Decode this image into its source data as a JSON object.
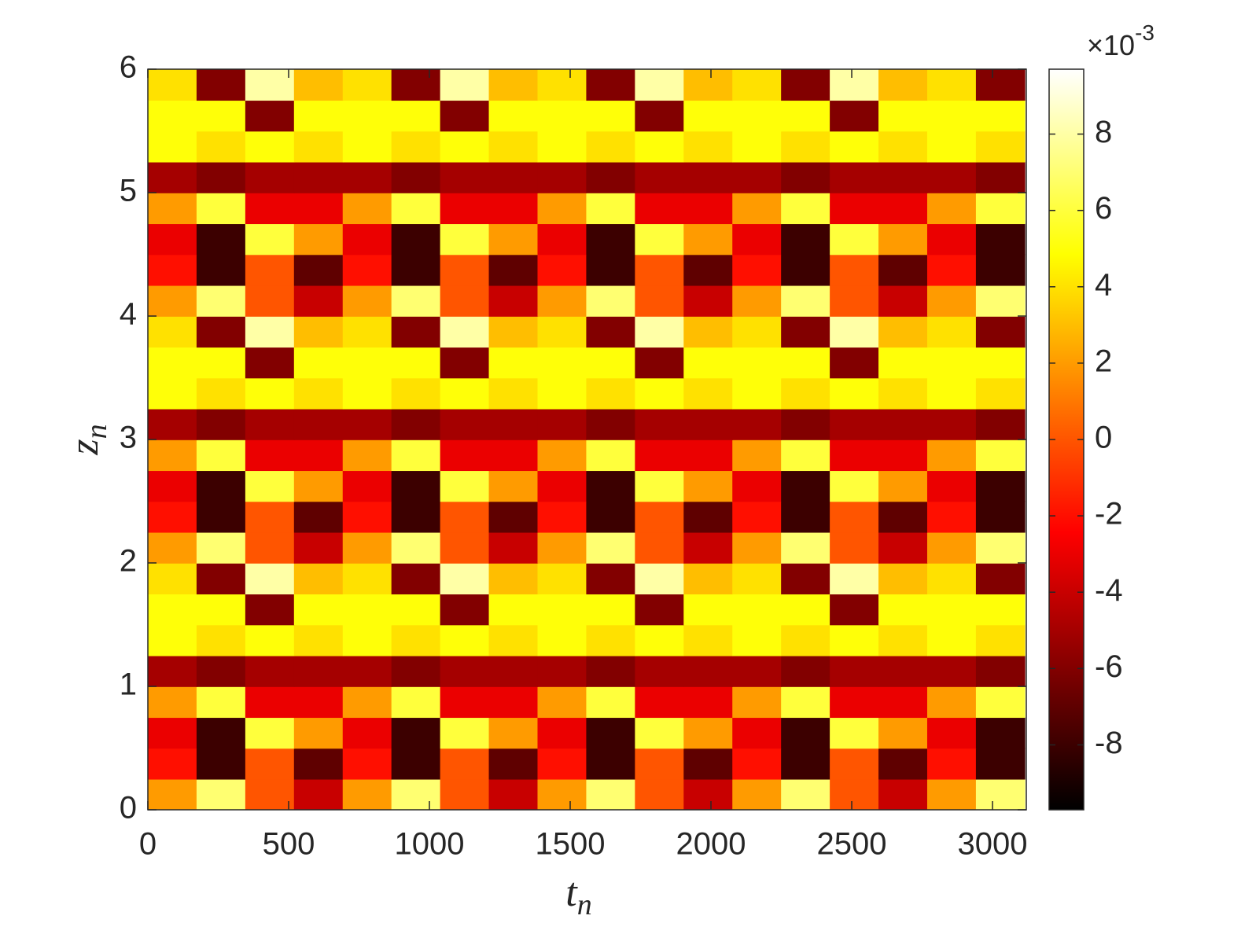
{
  "chart_data": {
    "type": "heatmap",
    "xlabel": {
      "base": "t",
      "sub": "n"
    },
    "ylabel": {
      "base": "z",
      "sub": "n"
    },
    "x": [
      86.5,
      259.5,
      432.5,
      605.5,
      778.5,
      951.5,
      1124.5,
      1297.5,
      1470.5,
      1643.5,
      1816.5,
      1989.5,
      2162.5,
      2335.5,
      2508.5,
      2681.5,
      2854.5,
      3027.5
    ],
    "y": [
      0.125,
      0.375,
      0.625,
      0.875,
      1.125,
      1.375,
      1.625,
      1.875,
      2.125,
      2.375,
      2.625,
      2.875,
      3.125,
      3.375,
      3.625,
      3.875,
      4.125,
      4.375,
      4.625,
      4.875,
      5.125,
      5.375,
      5.625,
      5.875
    ],
    "z": [
      [
        2,
        7,
        0,
        -4,
        2,
        7,
        0,
        -4,
        2,
        7,
        0,
        -4,
        2,
        7,
        0,
        -4,
        2,
        7
      ],
      [
        -2,
        -8,
        0,
        -7,
        -2,
        -8,
        0,
        -7,
        -2,
        -8,
        0,
        -7,
        -2,
        -8,
        0,
        -7,
        -2,
        -8
      ],
      [
        -3,
        -8,
        6,
        2,
        -3,
        -8,
        6,
        2,
        -3,
        -8,
        6,
        2,
        -3,
        -8,
        6,
        2,
        -3,
        -8
      ],
      [
        2,
        6,
        -3,
        -3,
        2,
        6,
        -3,
        -3,
        2,
        6,
        -3,
        -3,
        2,
        6,
        -3,
        -3,
        2,
        6
      ],
      [
        -5,
        -6,
        -5,
        -5,
        -5,
        -6,
        -5,
        -5,
        -5,
        -6,
        -5,
        -5,
        -5,
        -6,
        -5,
        -5,
        -5,
        -6
      ],
      [
        5,
        4,
        5,
        4,
        5,
        4,
        5,
        4,
        5,
        4,
        5,
        4,
        5,
        4,
        5,
        4,
        5,
        4
      ],
      [
        5,
        5,
        -6,
        5,
        5,
        5,
        -6,
        5,
        5,
        5,
        -6,
        5,
        5,
        5,
        -6,
        5,
        5,
        5
      ],
      [
        4,
        -6,
        8,
        3,
        4,
        -6,
        8,
        3,
        4,
        -6,
        8,
        3,
        4,
        -6,
        8,
        3,
        4,
        -6
      ],
      [
        2,
        7,
        0,
        -4,
        2,
        7,
        0,
        -4,
        2,
        7,
        0,
        -4,
        2,
        7,
        0,
        -4,
        2,
        7
      ],
      [
        -2,
        -8,
        0,
        -7,
        -2,
        -8,
        0,
        -7,
        -2,
        -8,
        0,
        -7,
        -2,
        -8,
        0,
        -7,
        -2,
        -8
      ],
      [
        -3,
        -8,
        6,
        2,
        -3,
        -8,
        6,
        2,
        -3,
        -8,
        6,
        2,
        -3,
        -8,
        6,
        2,
        -3,
        -8
      ],
      [
        2,
        6,
        -3,
        -3,
        2,
        6,
        -3,
        -3,
        2,
        6,
        -3,
        -3,
        2,
        6,
        -3,
        -3,
        2,
        6
      ],
      [
        -5,
        -6,
        -5,
        -5,
        -5,
        -6,
        -5,
        -5,
        -5,
        -6,
        -5,
        -5,
        -5,
        -6,
        -5,
        -5,
        -5,
        -6
      ],
      [
        5,
        4,
        5,
        4,
        5,
        4,
        5,
        4,
        5,
        4,
        5,
        4,
        5,
        4,
        5,
        4,
        5,
        4
      ],
      [
        5,
        5,
        -6,
        5,
        5,
        5,
        -6,
        5,
        5,
        5,
        -6,
        5,
        5,
        5,
        -6,
        5,
        5,
        5
      ],
      [
        4,
        -6,
        8,
        3,
        4,
        -6,
        8,
        3,
        4,
        -6,
        8,
        3,
        4,
        -6,
        8,
        3,
        4,
        -6
      ],
      [
        2,
        7,
        0,
        -4,
        2,
        7,
        0,
        -4,
        2,
        7,
        0,
        -4,
        2,
        7,
        0,
        -4,
        2,
        7
      ],
      [
        -2,
        -8,
        0,
        -7,
        -2,
        -8,
        0,
        -7,
        -2,
        -8,
        0,
        -7,
        -2,
        -8,
        0,
        -7,
        -2,
        -8
      ],
      [
        -3,
        -8,
        6,
        2,
        -3,
        -8,
        6,
        2,
        -3,
        -8,
        6,
        2,
        -3,
        -8,
        6,
        2,
        -3,
        -8
      ],
      [
        2,
        6,
        -3,
        -3,
        2,
        6,
        -3,
        -3,
        2,
        6,
        -3,
        -3,
        2,
        6,
        -3,
        -3,
        2,
        6
      ],
      [
        -5,
        -6,
        -5,
        -5,
        -5,
        -6,
        -5,
        -5,
        -5,
        -6,
        -5,
        -5,
        -5,
        -6,
        -5,
        -5,
        -5,
        -6
      ],
      [
        5,
        4,
        5,
        4,
        5,
        4,
        5,
        4,
        5,
        4,
        5,
        4,
        5,
        4,
        5,
        4,
        5,
        4
      ],
      [
        5,
        5,
        -6,
        5,
        5,
        5,
        -6,
        5,
        5,
        5,
        -6,
        5,
        5,
        5,
        -6,
        5,
        5,
        5
      ],
      [
        4,
        -6,
        8,
        3,
        4,
        -6,
        8,
        3,
        4,
        -6,
        8,
        3,
        4,
        -6,
        8,
        3,
        4,
        -6
      ]
    ],
    "xlim": [
      0,
      3120
    ],
    "ylim": [
      0,
      6
    ],
    "xticks": [
      0,
      500,
      1000,
      1500,
      2000,
      2500,
      3000
    ],
    "yticks": [
      0,
      1,
      2,
      3,
      4,
      5,
      6
    ],
    "colormap": "hot",
    "clim": [
      -9.7,
      9.7
    ],
    "cticks": [
      -8,
      -6,
      -4,
      -2,
      0,
      2,
      4,
      6,
      8
    ],
    "colorbar_multiplier": "×10",
    "colorbar_exponent": "-3"
  }
}
